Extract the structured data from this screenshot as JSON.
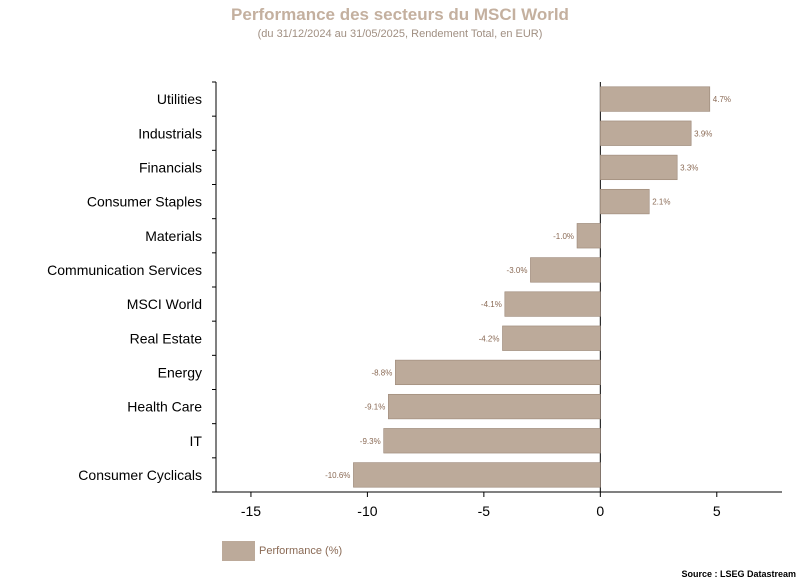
{
  "chart_data": {
    "type": "bar",
    "orientation": "horizontal",
    "title": "Performance des secteurs du MSCI World",
    "subtitle": "(du 31/12/2024 au 31/05/2025, Rendement Total, en EUR)",
    "categories": [
      "Utilities",
      "Industrials",
      "Financials",
      "Consumer Staples",
      "Materials",
      "Communication Services",
      "MSCI World",
      "Real Estate",
      "Energy",
      "Health Care",
      "IT",
      "Consumer Cyclicals"
    ],
    "series": [
      {
        "name": "Performance (%)",
        "values": [
          4.7,
          3.9,
          3.3,
          2.1,
          -1.0,
          -3.0,
          -4.1,
          -4.2,
          -8.8,
          -9.1,
          -9.3,
          -10.6
        ],
        "labels": [
          "4.7%",
          "3.9%",
          "3.3%",
          "2.1%",
          "-1.0%",
          "-3.0%",
          "-4.1%",
          "-4.2%",
          "-8.8%",
          "-9.1%",
          "-9.3%",
          "-10.6%"
        ]
      }
    ],
    "xlim": [
      -16.5,
      7.8
    ],
    "xticks": [
      -15,
      -10,
      -5,
      0,
      5
    ],
    "grid": false,
    "legend_position": "bottom-left",
    "bar_color": "#bcaa9a"
  },
  "source": "Source : LSEG Datastream"
}
